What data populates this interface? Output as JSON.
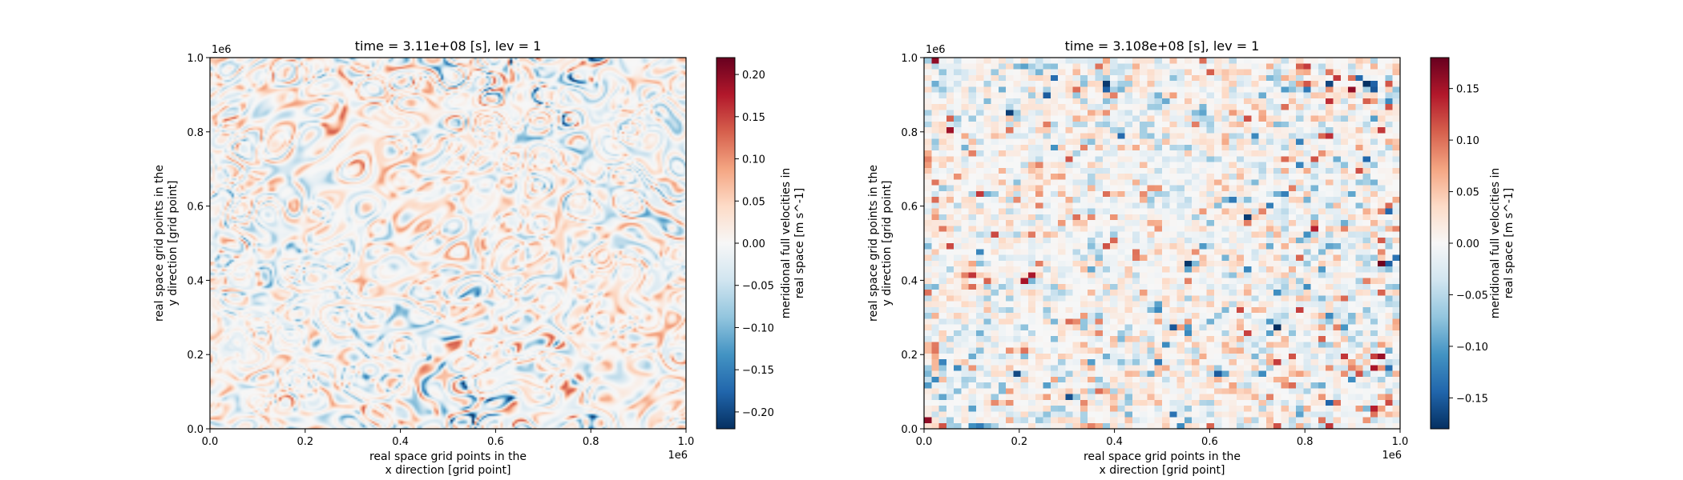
{
  "figure": {
    "panels": [
      {
        "title": "time = 3.11e+08 [s], lev = 1",
        "xlabel_line1": "real space grid points in the",
        "xlabel_line2": "x direction [grid point]",
        "ylabel_line1": "real space grid points in the",
        "ylabel_line2": "y direction [grid point]",
        "x_offset_text": "1e6",
        "y_offset_text": "1e6",
        "x_ticks": [
          "0.0",
          "0.2",
          "0.4",
          "0.6",
          "0.8",
          "1.0"
        ],
        "y_ticks": [
          "0.0",
          "0.2",
          "0.4",
          "0.6",
          "0.8",
          "1.0"
        ],
        "colorbar_label_line1": "meridional full velocities in",
        "colorbar_label_line2": "real space [m s^-1]",
        "colorbar_ticks": [
          "−0.20",
          "−0.15",
          "−0.10",
          "−0.05",
          "0.00",
          "0.05",
          "0.10",
          "0.15",
          "0.20"
        ]
      },
      {
        "title": "time = 3.108e+08 [s], lev = 1",
        "xlabel_line1": "real space grid points in the",
        "xlabel_line2": "x direction [grid point]",
        "ylabel_line1": "real space grid points in the",
        "ylabel_line2": "y direction [grid point]",
        "x_offset_text": "1e6",
        "y_offset_text": "1e6",
        "x_ticks": [
          "0.0",
          "0.2",
          "0.4",
          "0.6",
          "0.8",
          "1.0"
        ],
        "y_ticks": [
          "0.0",
          "0.2",
          "0.4",
          "0.6",
          "0.8",
          "1.0"
        ],
        "colorbar_label_line1": "meridional full velocities in",
        "colorbar_label_line2": "real space [m s^-1]",
        "colorbar_ticks": [
          "−0.15",
          "−0.10",
          "−0.05",
          "0.00",
          "0.05",
          "0.10",
          "0.15"
        ]
      }
    ]
  },
  "chart_data": [
    {
      "type": "heatmap",
      "title": "time = 3.11e+08 [s], lev = 1",
      "xlabel": "real space grid points in the x direction [grid point]",
      "ylabel": "real space grid points in the y direction [grid point]",
      "xlim": [
        0,
        1000000
      ],
      "ylim": [
        0,
        1000000
      ],
      "x_tick_values": [
        0,
        0.2,
        0.4,
        0.6,
        0.8,
        1.0
      ],
      "y_tick_values": [
        0,
        0.2,
        0.4,
        0.6,
        0.8,
        1.0
      ],
      "colormap": "RdBu_r",
      "value_range": [
        -0.22,
        0.22
      ],
      "colorbar_tick_values": [
        -0.2,
        -0.15,
        -0.1,
        -0.05,
        0.0,
        0.05,
        0.1,
        0.15,
        0.2
      ],
      "colorbar_label": "meridional full velocities in real space [m s^-1]",
      "grid": false,
      "resolution": "high (smooth)"
    },
    {
      "type": "heatmap",
      "title": "time = 3.108e+08 [s], lev = 1",
      "xlabel": "real space grid points in the x direction [grid point]",
      "ylabel": "real space grid points in the y direction [grid point]",
      "xlim": [
        0,
        1000000
      ],
      "ylim": [
        0,
        1000000
      ],
      "x_tick_values": [
        0,
        0.2,
        0.4,
        0.6,
        0.8,
        1.0
      ],
      "y_tick_values": [
        0,
        0.2,
        0.4,
        0.6,
        0.8,
        1.0
      ],
      "colormap": "RdBu_r",
      "value_range": [
        -0.18,
        0.18
      ],
      "colorbar_tick_values": [
        -0.15,
        -0.1,
        -0.05,
        0.0,
        0.05,
        0.1,
        0.15
      ],
      "colorbar_label": "meridional full velocities in real space [m s^-1]",
      "grid": false,
      "resolution": "coarse (64 x 64 cells)"
    }
  ]
}
